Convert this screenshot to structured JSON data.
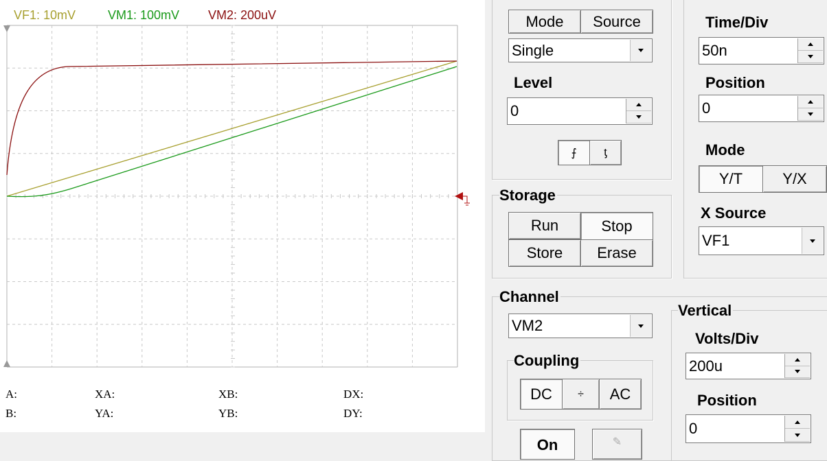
{
  "legend": [
    "VF1: 10mV",
    "VM1: 100mV",
    "VM2: 200uV"
  ],
  "cursors": {
    "row1": [
      "A:",
      "XA:",
      "XB:",
      "DX:"
    ],
    "row2": [
      "B:",
      "YA:",
      "YB:",
      "DY:"
    ]
  },
  "trigger": {
    "tabs": [
      "Mode",
      "Source"
    ],
    "type": "Single",
    "level_label": "Level",
    "level": "0"
  },
  "storage": {
    "title": "Storage",
    "buttons": [
      "Run",
      "Stop",
      "Store",
      "Erase"
    ]
  },
  "timebase": {
    "time_div_label": "Time/Div",
    "time_div": "50n",
    "position_label": "Position",
    "position": "0",
    "mode_label": "Mode",
    "modes": [
      "Y/T",
      "Y/X"
    ],
    "x_source_label": "X Source",
    "x_source": "VF1"
  },
  "channel": {
    "title": "Channel",
    "selected": "VM2",
    "coupling_title": "Coupling",
    "coupling": [
      "DC",
      "÷",
      "AC"
    ],
    "on": "On"
  },
  "vertical": {
    "title": "Vertical",
    "volts_div_label": "Volts/Div",
    "volts_div": "200u",
    "position_label": "Position",
    "position": "0"
  }
}
